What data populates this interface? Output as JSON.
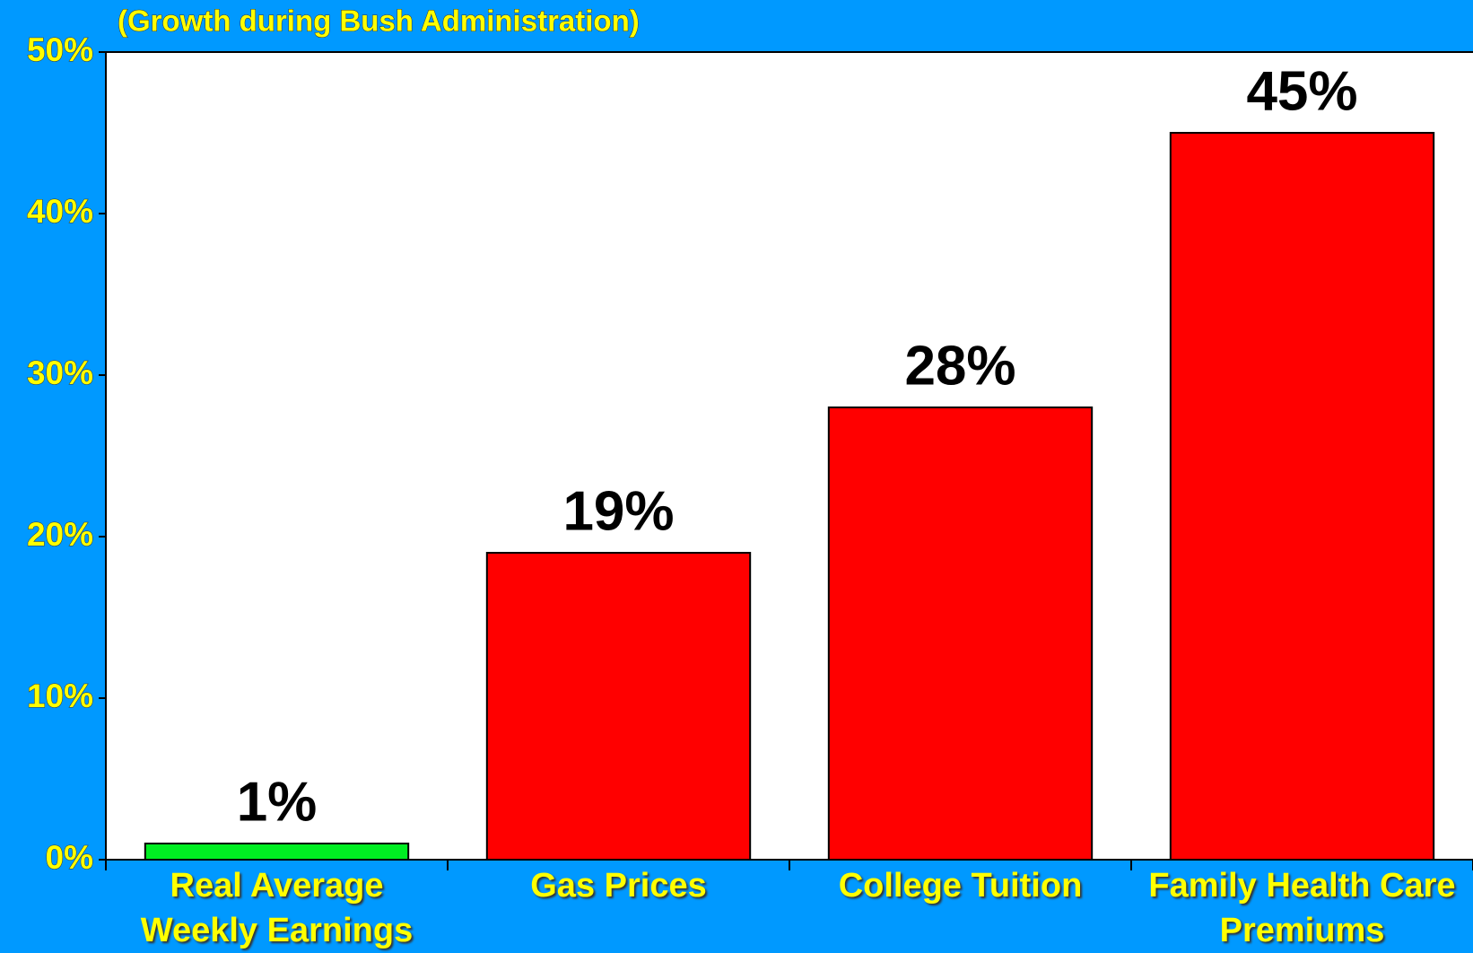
{
  "chart_data": {
    "type": "bar",
    "subtitle": "(Growth during Bush Administration)",
    "categories": [
      "Real Average Weekly Earnings",
      "Gas Prices",
      "College Tuition",
      "Family Health Care Premiums"
    ],
    "values": [
      1,
      19,
      28,
      45
    ],
    "value_labels": [
      "1%",
      "19%",
      "28%",
      "45%"
    ],
    "colors": [
      "#00ee22",
      "#ff0000",
      "#ff0000",
      "#ff0000"
    ],
    "ylim": [
      0,
      50
    ],
    "yticks": [
      {
        "value": 0,
        "label": "0%"
      },
      {
        "value": 10,
        "label": "10%"
      },
      {
        "value": 20,
        "label": "20%"
      },
      {
        "value": 30,
        "label": "30%"
      },
      {
        "value": 40,
        "label": "40%"
      },
      {
        "value": 50,
        "label": "50%"
      }
    ],
    "grid": false
  }
}
